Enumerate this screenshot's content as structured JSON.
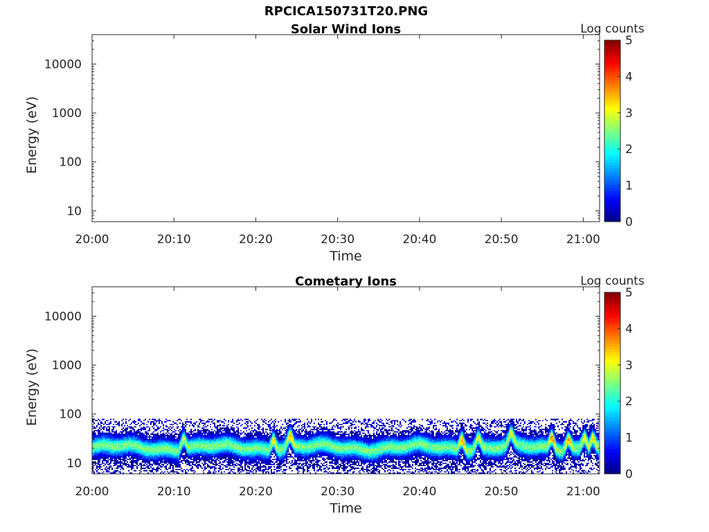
{
  "figure": {
    "title": "RPCICA150731T20.PNG"
  },
  "chart_data": [
    {
      "type": "heatmap",
      "title": "Solar Wind Ions",
      "xlabel": "Time",
      "ylabel": "Energy (eV)",
      "x_ticks": [
        "20:00",
        "20:10",
        "20:20",
        "20:30",
        "20:40",
        "20:50",
        "21:00"
      ],
      "xlim": [
        "20:00",
        "21:02"
      ],
      "y_scale": "log",
      "y_ticks": [
        10,
        100,
        1000,
        10000
      ],
      "y_tick_labels": [
        "10",
        "100",
        "1000",
        "10000"
      ],
      "ylim": [
        6,
        40000
      ],
      "colorbar": {
        "label": "Log counts",
        "ticks": [
          0,
          1,
          2,
          3,
          4,
          5
        ],
        "tick_labels": [
          "0",
          "1",
          "2",
          "3",
          "4",
          "5"
        ],
        "range": [
          0,
          5
        ],
        "colormap": "jet"
      },
      "data": "empty"
    },
    {
      "type": "heatmap",
      "title": "Cometary Ions",
      "xlabel": "Time",
      "ylabel": "Energy (eV)",
      "x_ticks": [
        "20:00",
        "20:10",
        "20:20",
        "20:30",
        "20:40",
        "20:50",
        "21:00"
      ],
      "xlim": [
        "20:00",
        "21:02"
      ],
      "y_scale": "log",
      "y_ticks": [
        10,
        100,
        1000,
        10000
      ],
      "y_tick_labels": [
        "10",
        "100",
        "1000",
        "10000"
      ],
      "ylim": [
        6,
        40000
      ],
      "colorbar": {
        "label": "Log counts",
        "ticks": [
          0,
          1,
          2,
          3,
          4,
          5
        ],
        "tick_labels": [
          "0",
          "1",
          "2",
          "3",
          "4",
          "5"
        ],
        "range": [
          0,
          5
        ],
        "colormap": "jet"
      },
      "band": {
        "peak_energy_ev": 20,
        "energy_range_ev": [
          6,
          80
        ],
        "peak_log_counts": 2.5,
        "bursts": [
          {
            "time": "20:11",
            "log_counts": 2.8
          },
          {
            "time": "20:22",
            "log_counts": 3.2
          },
          {
            "time": "20:24",
            "log_counts": 3.6
          },
          {
            "time": "20:45",
            "log_counts": 3.6
          },
          {
            "time": "20:47",
            "log_counts": 3.0
          },
          {
            "time": "20:51",
            "log_counts": 3.2
          },
          {
            "time": "20:56",
            "log_counts": 3.8
          },
          {
            "time": "20:58",
            "log_counts": 3.6
          },
          {
            "time": "21:00",
            "log_counts": 3.2
          },
          {
            "time": "21:01",
            "log_counts": 3.3
          }
        ]
      }
    }
  ]
}
